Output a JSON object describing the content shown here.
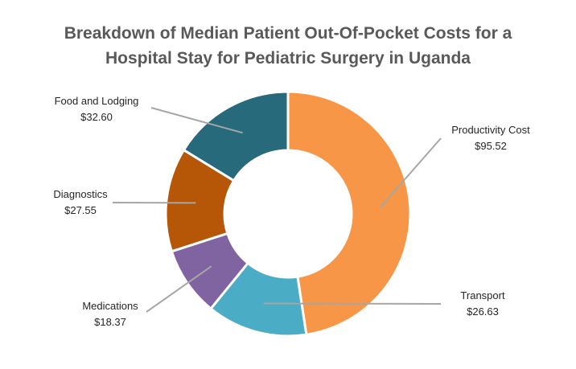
{
  "chart_data": {
    "type": "pie",
    "variant": "donut",
    "title_lines": [
      "Breakdown of Median Patient Out-Of-Pocket Costs for a",
      "Hospital Stay for Pediatric Surgery in Uganda"
    ],
    "legend": "none",
    "slices": [
      {
        "name": "Productivity Cost",
        "value": 95.52,
        "label": "$95.52",
        "color": "#F79646"
      },
      {
        "name": "Transport",
        "value": 26.63,
        "label": "$26.63",
        "color": "#4BACC6"
      },
      {
        "name": "Medications",
        "value": 18.37,
        "label": "$18.37",
        "color": "#8064A2"
      },
      {
        "name": "Diagnostics",
        "value": 27.55,
        "label": "$27.55",
        "color": "#B65708"
      },
      {
        "name": "Food and Lodging",
        "value": 32.6,
        "label": "$32.60",
        "color": "#276A7C"
      }
    ]
  }
}
